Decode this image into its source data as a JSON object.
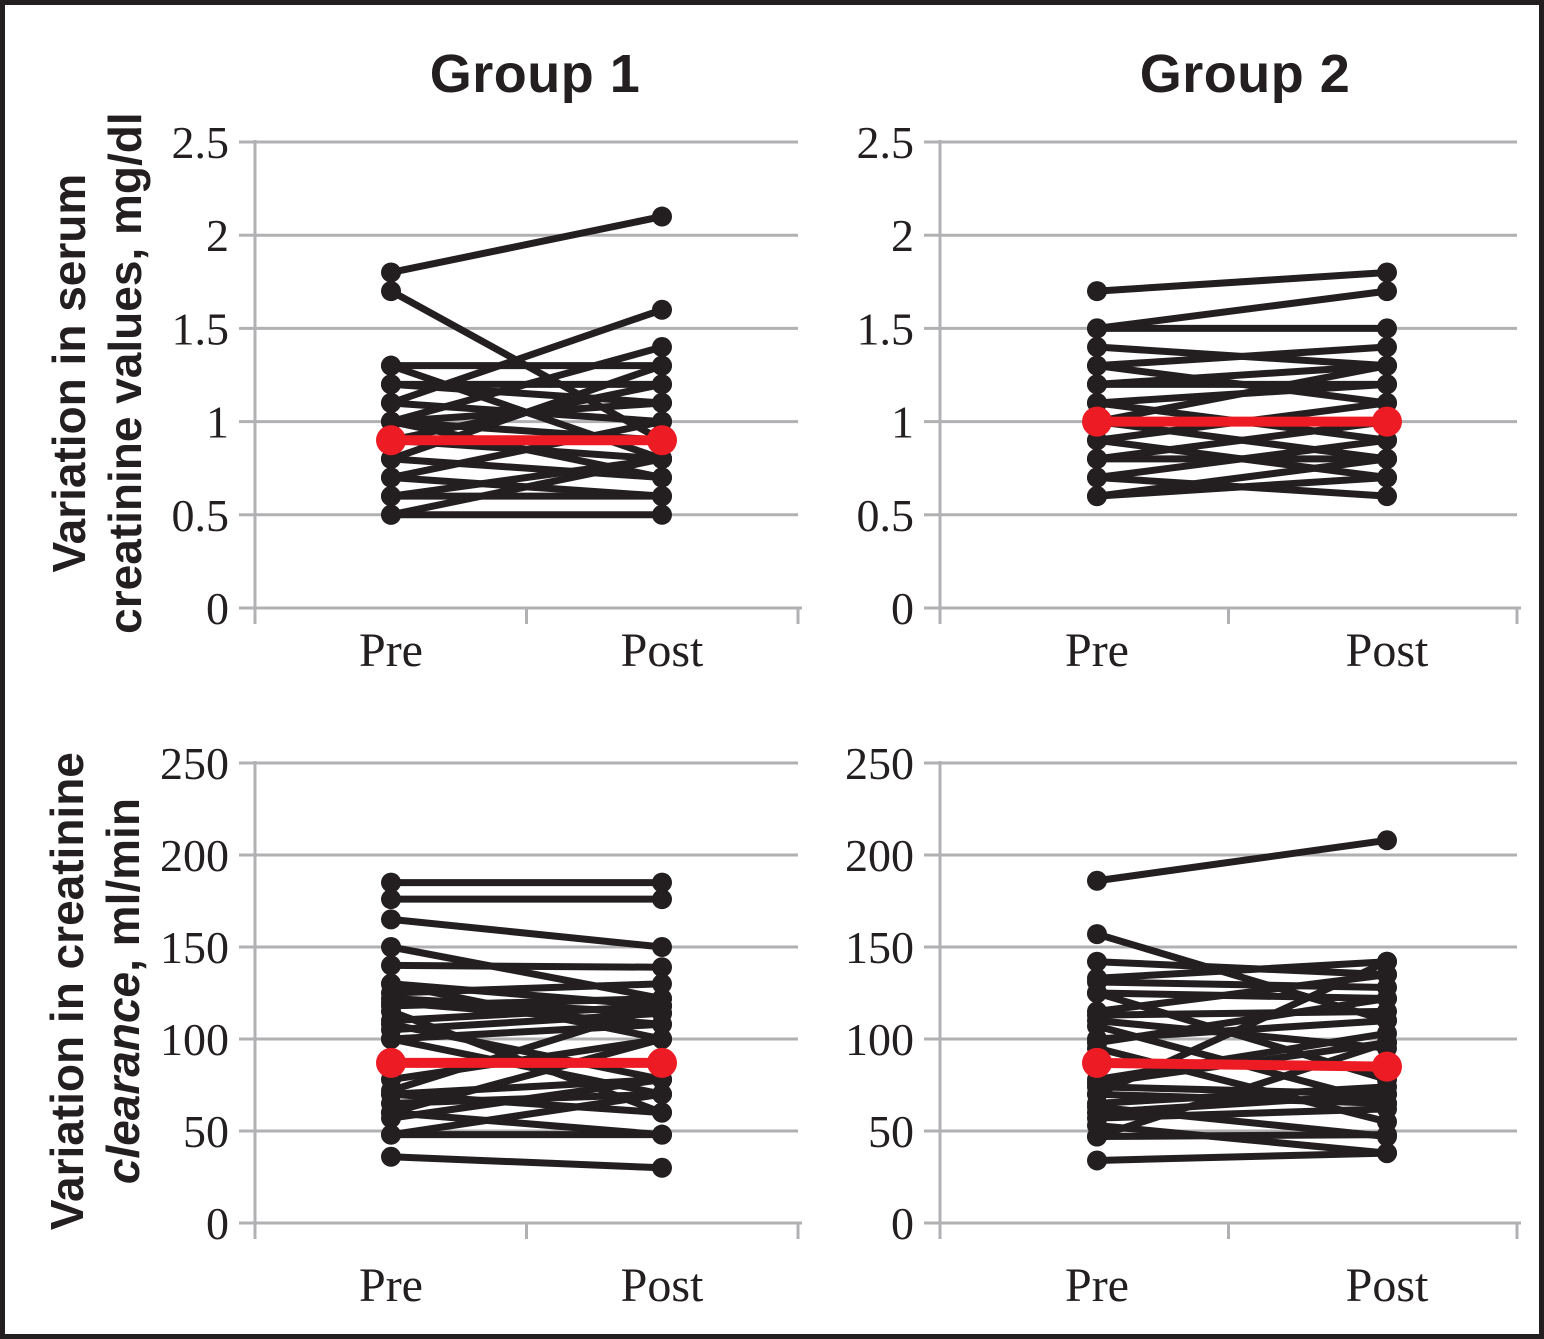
{
  "titles": {
    "group1": "Group 1",
    "group2": "Group 2"
  },
  "axis_labels": {
    "row1_line1": "Variation in serum",
    "row1_line2": "creatinine values, mg/dl",
    "row2_line1": "Variation in creatinine",
    "row2_line2_italic": "clearance",
    "row2_line2_rest": ", ml/min"
  },
  "colors": {
    "line_black": "#231f20",
    "mean_red": "#ed1c24",
    "grid_gray": "#b1b1b4",
    "background": "#ffffff",
    "border": "#231f20"
  },
  "chart_data": [
    {
      "id": "serum-group1",
      "type": "line",
      "subtype": "paired-slopegraph",
      "title": "Group 1",
      "ylabel": "Variation in serum creatinine values, mg/dl",
      "categories": [
        "Pre",
        "Post"
      ],
      "ylim": [
        0,
        2.5
      ],
      "ytick_labels": [
        "0",
        "0.5",
        "1",
        "1.5",
        "2",
        "2.5"
      ],
      "grid": true,
      "legend": "none",
      "patients_pre_post": [
        [
          1.8,
          2.1
        ],
        [
          1.7,
          0.9
        ],
        [
          1.3,
          1.3
        ],
        [
          1.3,
          0.8
        ],
        [
          1.2,
          1.2
        ],
        [
          1.2,
          1.1
        ],
        [
          1.1,
          1.6
        ],
        [
          1.1,
          1.0
        ],
        [
          1.0,
          1.4
        ],
        [
          1.0,
          1.1
        ],
        [
          1.0,
          0.9
        ],
        [
          1.0,
          0.7
        ],
        [
          0.9,
          1.2
        ],
        [
          0.9,
          0.8
        ],
        [
          0.8,
          1.3
        ],
        [
          0.8,
          0.7
        ],
        [
          0.7,
          1.0
        ],
        [
          0.7,
          0.6
        ],
        [
          0.6,
          0.8
        ],
        [
          0.6,
          0.6
        ],
        [
          0.5,
          0.8
        ],
        [
          0.5,
          0.5
        ]
      ],
      "mean_pre_post": [
        0.9,
        0.9
      ]
    },
    {
      "id": "serum-group2",
      "type": "line",
      "subtype": "paired-slopegraph",
      "title": "Group 2",
      "ylabel": "Variation in serum creatinine values, mg/dl",
      "categories": [
        "Pre",
        "Post"
      ],
      "ylim": [
        0,
        2.5
      ],
      "ytick_labels": [
        "0",
        "0.5",
        "1",
        "1.5",
        "2",
        "2.5"
      ],
      "grid": true,
      "legend": "none",
      "patients_pre_post": [
        [
          1.7,
          1.8
        ],
        [
          1.5,
          1.7
        ],
        [
          1.5,
          1.5
        ],
        [
          1.4,
          1.3
        ],
        [
          1.3,
          1.4
        ],
        [
          1.3,
          1.1
        ],
        [
          1.2,
          1.3
        ],
        [
          1.2,
          1.2
        ],
        [
          1.1,
          1.2
        ],
        [
          1.1,
          0.9
        ],
        [
          1.0,
          1.3
        ],
        [
          1.0,
          1.0
        ],
        [
          1.0,
          0.8
        ],
        [
          0.9,
          1.1
        ],
        [
          0.9,
          0.7
        ],
        [
          0.8,
          1.0
        ],
        [
          0.8,
          0.8
        ],
        [
          0.7,
          0.9
        ],
        [
          0.7,
          0.6
        ],
        [
          0.6,
          0.8
        ],
        [
          0.6,
          0.7
        ]
      ],
      "mean_pre_post": [
        1.0,
        1.0
      ]
    },
    {
      "id": "clearance-group1",
      "type": "line",
      "subtype": "paired-slopegraph",
      "title": "Group 1",
      "ylabel": "Variation in creatinine clearance, ml/min",
      "categories": [
        "Pre",
        "Post"
      ],
      "ylim": [
        0,
        250
      ],
      "ytick_labels": [
        "0",
        "50",
        "100",
        "150",
        "200",
        "250"
      ],
      "grid": true,
      "legend": "none",
      "patients_pre_post": [
        [
          185,
          185
        ],
        [
          176,
          176
        ],
        [
          165,
          150
        ],
        [
          150,
          122
        ],
        [
          140,
          139
        ],
        [
          130,
          118
        ],
        [
          130,
          100
        ],
        [
          125,
          130
        ],
        [
          122,
          114
        ],
        [
          120,
          108
        ],
        [
          118,
          122
        ],
        [
          115,
          60
        ],
        [
          110,
          118
        ],
        [
          108,
          78
        ],
        [
          105,
          114
        ],
        [
          100,
          108
        ],
        [
          100,
          70
        ],
        [
          78,
          100
        ],
        [
          72,
          118
        ],
        [
          70,
          78
        ],
        [
          70,
          60
        ],
        [
          65,
          70
        ],
        [
          60,
          100
        ],
        [
          60,
          48
        ],
        [
          57,
          78
        ],
        [
          48,
          70
        ],
        [
          48,
          48
        ],
        [
          36,
          30
        ]
      ],
      "mean_pre_post": [
        87,
        87
      ]
    },
    {
      "id": "clearance-group2",
      "type": "line",
      "subtype": "paired-slopegraph",
      "title": "Group 2",
      "ylabel": "Variation in creatinine clearance, ml/min",
      "categories": [
        "Pre",
        "Post"
      ],
      "ylim": [
        0,
        250
      ],
      "ytick_labels": [
        "0",
        "50",
        "100",
        "150",
        "200",
        "250"
      ],
      "grid": true,
      "legend": "none",
      "patients_pre_post": [
        [
          186,
          208
        ],
        [
          157,
          110
        ],
        [
          142,
          135
        ],
        [
          133,
          142
        ],
        [
          131,
          128
        ],
        [
          125,
          122
        ],
        [
          125,
          78
        ],
        [
          115,
          135
        ],
        [
          113,
          115
        ],
        [
          110,
          95
        ],
        [
          107,
          65
        ],
        [
          100,
          110
        ],
        [
          98,
          122
        ],
        [
          95,
          55
        ],
        [
          78,
          103
        ],
        [
          76,
          98
        ],
        [
          74,
          70
        ],
        [
          70,
          142
        ],
        [
          70,
          65
        ],
        [
          65,
          74
        ],
        [
          63,
          47
        ],
        [
          60,
          70
        ],
        [
          57,
          62
        ],
        [
          53,
          38
        ],
        [
          47,
          98
        ],
        [
          47,
          48
        ],
        [
          34,
          38
        ]
      ],
      "mean_pre_post": [
        87,
        85
      ]
    }
  ]
}
